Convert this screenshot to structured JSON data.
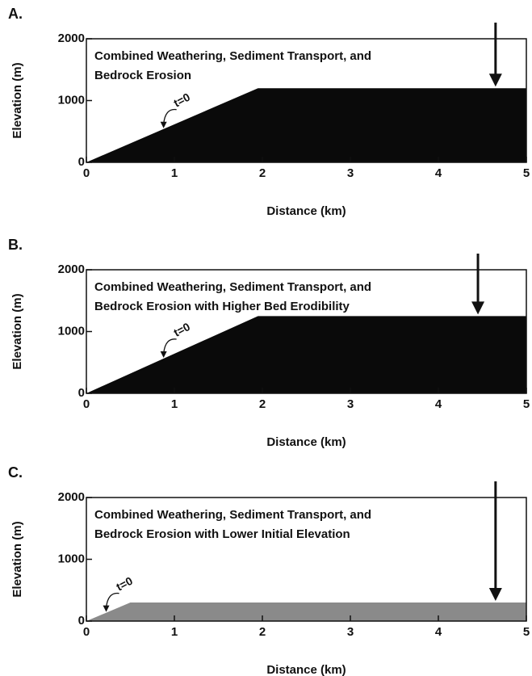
{
  "chart_data": [
    {
      "type": "area",
      "panel_label": "A.",
      "annotation": [
        "Combined Weathering, Sediment Transport, and",
        "Bedrock Erosion"
      ],
      "t_label": "t=0",
      "arrow_x": 4.65,
      "x": [
        0,
        1.95,
        5
      ],
      "values": [
        0,
        1200,
        1200
      ],
      "color": "#0a0a0a",
      "xlabel": "Distance (km)",
      "ylabel": "Elevation (m)",
      "xlim": [
        0,
        5
      ],
      "ylim": [
        0,
        2000
      ],
      "xticks": [
        0,
        1,
        2,
        3,
        4,
        5
      ],
      "yticks": [
        0,
        1000,
        2000
      ]
    },
    {
      "type": "area",
      "panel_label": "B.",
      "annotation": [
        "Combined Weathering, Sediment Transport, and",
        "Bedrock Erosion with Higher Bed Erodibility"
      ],
      "t_label": "t=0",
      "arrow_x": 4.45,
      "x": [
        0,
        1.95,
        5
      ],
      "values": [
        0,
        1250,
        1250
      ],
      "color": "#0a0a0a",
      "xlabel": "Distance (km)",
      "ylabel": "Elevation (m)",
      "xlim": [
        0,
        5
      ],
      "ylim": [
        0,
        2000
      ],
      "xticks": [
        0,
        1,
        2,
        3,
        4,
        5
      ],
      "yticks": [
        0,
        1000,
        2000
      ]
    },
    {
      "type": "area",
      "panel_label": "C.",
      "annotation": [
        "Combined Weathering, Sediment Transport, and",
        "Bedrock Erosion with Lower Initial Elevation"
      ],
      "t_label": "t=0",
      "arrow_x": 4.65,
      "x": [
        0,
        0.5,
        5
      ],
      "values": [
        0,
        300,
        300
      ],
      "color": "#8a8a8a",
      "xlabel": "Distance (km)",
      "ylabel": "Elevation (m)",
      "xlim": [
        0,
        5
      ],
      "ylim": [
        0,
        2000
      ],
      "xticks": [
        0,
        1,
        2,
        3,
        4,
        5
      ],
      "yticks": [
        0,
        1000,
        2000
      ]
    }
  ]
}
